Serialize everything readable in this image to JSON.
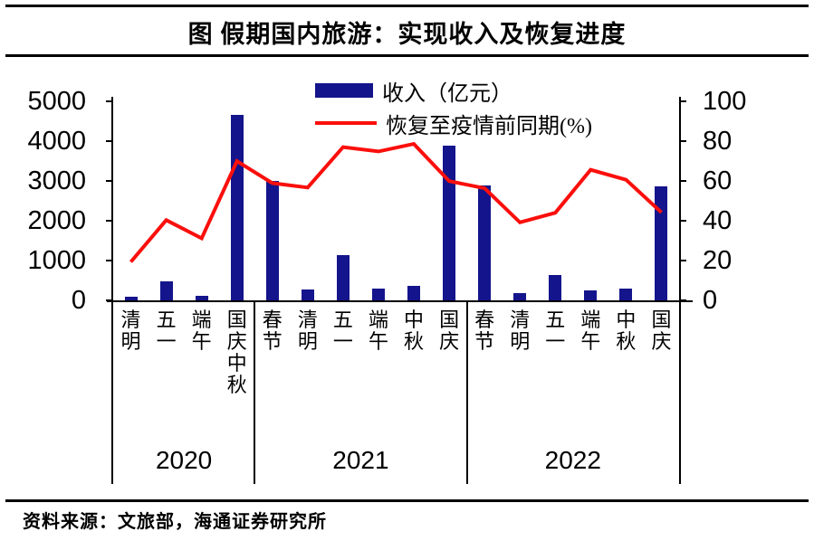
{
  "title": "图 假期国内旅游：实现收入及恢复进度",
  "source": "资料来源：文旅部，海通证券研究所",
  "legend": {
    "bar_label": "收入（亿元）",
    "line_label": "恢复至疫情前同期(%)"
  },
  "colors": {
    "bar": "#14148c",
    "line": "#fa0f0c",
    "axis": "#000000"
  },
  "chart_data": {
    "type": "bar",
    "title": "图 假期国内旅游：实现收入及恢复进度",
    "categories": [
      "清明",
      "五一",
      "端午",
      "国庆中秋",
      "春节",
      "清明",
      "五一",
      "端午",
      "中秋",
      "国庆",
      "春节",
      "清明",
      "五一",
      "端午",
      "中秋",
      "国庆"
    ],
    "groups": [
      {
        "year": "2020",
        "count": 4
      },
      {
        "year": "2021",
        "count": 6
      },
      {
        "year": "2022",
        "count": 6
      }
    ],
    "series": [
      {
        "name": "收入（亿元）",
        "type": "bar",
        "axis": "left",
        "values": [
          82.6,
          475.6,
          122.8,
          4665.6,
          3011.0,
          271.7,
          1132.3,
          294.3,
          371.5,
          3890.6,
          2892.0,
          187.8,
          646.8,
          258.2,
          286.8,
          2872.1
        ]
      },
      {
        "name": "恢复至疫情前同期(%)",
        "type": "line",
        "axis": "right",
        "values": [
          19.3,
          40.3,
          31.2,
          69.9,
          58.9,
          56.7,
          77.0,
          74.8,
          78.6,
          59.9,
          56.3,
          39.2,
          44.0,
          65.6,
          60.6,
          44.2
        ]
      }
    ],
    "left_axis": {
      "label": "收入（亿元）",
      "ticks": [
        0,
        1000,
        2000,
        3000,
        4000,
        5000
      ],
      "range": [
        0,
        5000
      ]
    },
    "right_axis": {
      "label": "恢复至疫情前同期(%)",
      "ticks": [
        0,
        20,
        40,
        60,
        80,
        100
      ],
      "range": [
        0,
        100
      ]
    },
    "grid": false,
    "legend_position": "top-center"
  }
}
